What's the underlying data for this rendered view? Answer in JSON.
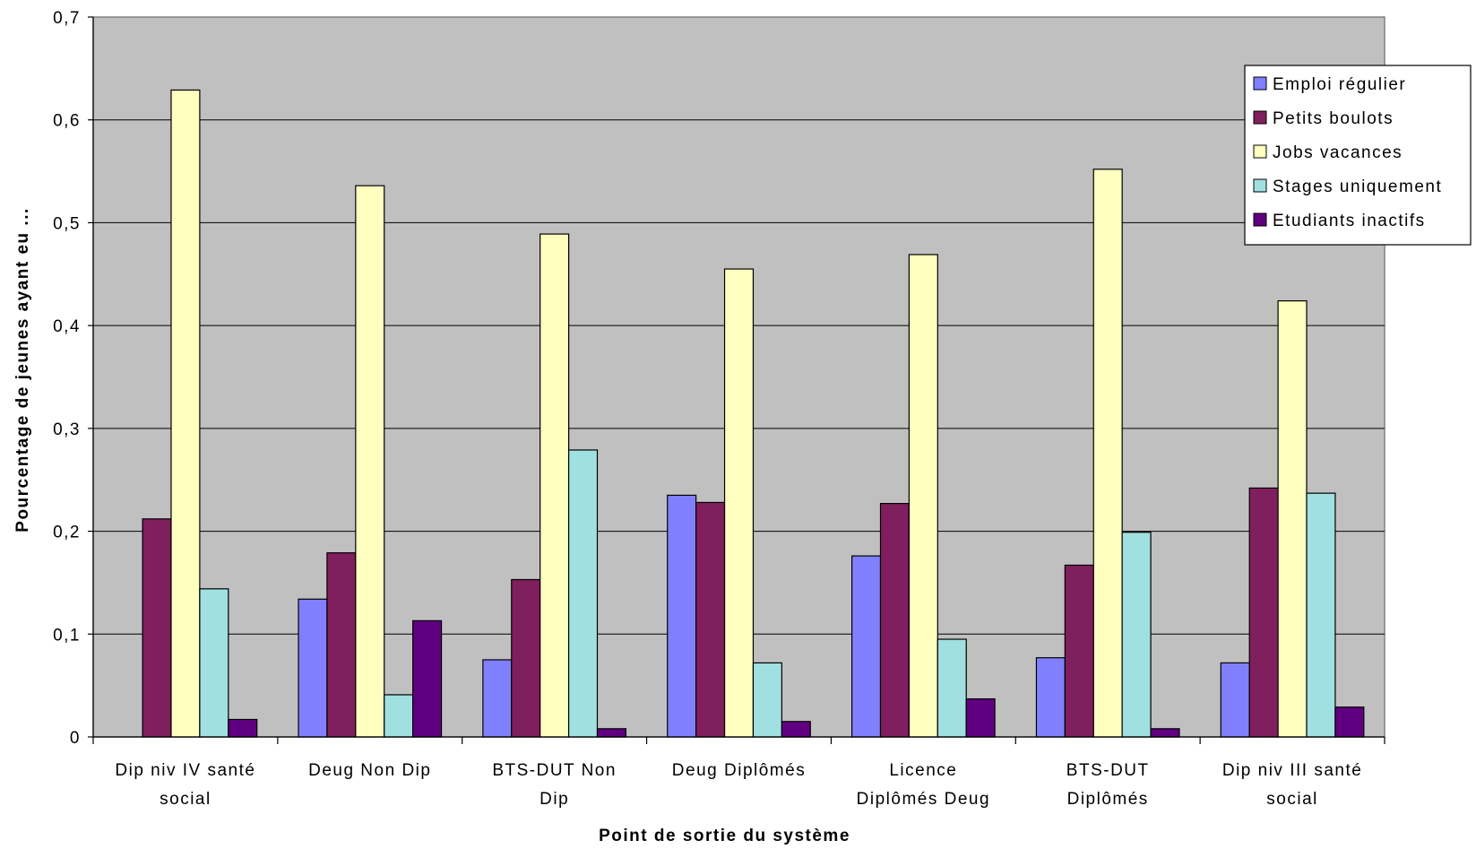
{
  "chart_data": {
    "type": "bar",
    "xlabel": "Point de sortie du système",
    "ylabel": "Pourcentage de jeunes ayant eu ...",
    "ylim": [
      0,
      0.7
    ],
    "yticks": [
      {
        "value": 0,
        "label": "0"
      },
      {
        "value": 0.1,
        "label": "0,1"
      },
      {
        "value": 0.2,
        "label": "0,2"
      },
      {
        "value": 0.3,
        "label": "0,3"
      },
      {
        "value": 0.4,
        "label": "0,4"
      },
      {
        "value": 0.5,
        "label": "0,5"
      },
      {
        "value": 0.6,
        "label": "0,6"
      },
      {
        "value": 0.7,
        "label": "0,7"
      }
    ],
    "grid": true,
    "legend_position": "top-right",
    "categories": [
      [
        "Dip niv IV santé",
        "social"
      ],
      [
        "Deug Non Dip"
      ],
      [
        "BTS-DUT Non",
        "Dip"
      ],
      [
        "Deug Diplômés"
      ],
      [
        "Licence",
        "Diplômés Deug"
      ],
      [
        "BTS-DUT",
        "Diplômés"
      ],
      [
        "Dip niv III santé",
        "social"
      ]
    ],
    "series": [
      {
        "name": "Emploi régulier",
        "color": "#8080ff",
        "values": [
          0,
          0.134,
          0.075,
          0.235,
          0.176,
          0.077,
          0.072
        ]
      },
      {
        "name": "Petits boulots",
        "color": "#801f5e",
        "values": [
          0.212,
          0.179,
          0.153,
          0.228,
          0.227,
          0.167,
          0.242
        ]
      },
      {
        "name": "Jobs vacances",
        "color": "#ffffc0",
        "values": [
          0.629,
          0.536,
          0.489,
          0.455,
          0.469,
          0.552,
          0.424
        ]
      },
      {
        "name": "Stages uniquement",
        "color": "#a0e0e0",
        "values": [
          0.144,
          0.041,
          0.279,
          0.072,
          0.095,
          0.199,
          0.237
        ]
      },
      {
        "name": "Etudiants inactifs",
        "color": "#600080",
        "values": [
          0.017,
          0.113,
          0.008,
          0.015,
          0.037,
          0.008,
          0.029
        ]
      }
    ]
  }
}
